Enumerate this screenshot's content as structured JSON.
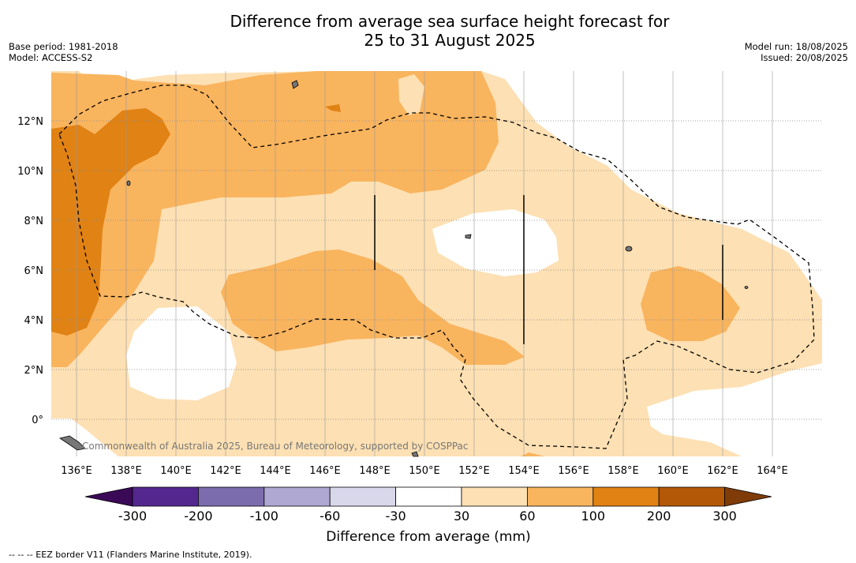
{
  "header": {
    "title_line1": "Difference from average sea surface height forecast for",
    "title_line2": "25 to 31 August 2025",
    "base_period": "Base period: 1981-2018",
    "model": "Model: ACCESS-S2",
    "model_run": "Model run: 18/08/2025",
    "issued": "Issued: 20/08/2025"
  },
  "map": {
    "lat_labels": [
      "12°N",
      "10°N",
      "8°N",
      "6°N",
      "4°N",
      "2°N",
      "0°"
    ],
    "lon_labels": [
      "136°E",
      "138°E",
      "140°E",
      "142°E",
      "144°E",
      "146°E",
      "148°E",
      "150°E",
      "152°E",
      "154°E",
      "156°E",
      "158°E",
      "160°E",
      "162°E",
      "164°E"
    ],
    "copyright": "Commonwealth of Australia 2025, Bureau of Meteorology, supported by COSPPac"
  },
  "colorbar": {
    "labels": [
      "-300",
      "-200",
      "-100",
      "-60",
      "-30",
      "30",
      "60",
      "100",
      "200",
      "300"
    ],
    "colors": [
      "#3b0a57",
      "#54278f",
      "#7b6cae",
      "#aea8d3",
      "#d9d8eb",
      "#ffffff",
      "#fde0b3",
      "#f9b45e",
      "#e08214",
      "#b35806",
      "#7f3b08"
    ],
    "title": "Difference from average (mm)"
  },
  "footer": {
    "eez_note": "--  --  -- EEZ border V11 (Flanders Marine Institute, 2019)."
  }
}
